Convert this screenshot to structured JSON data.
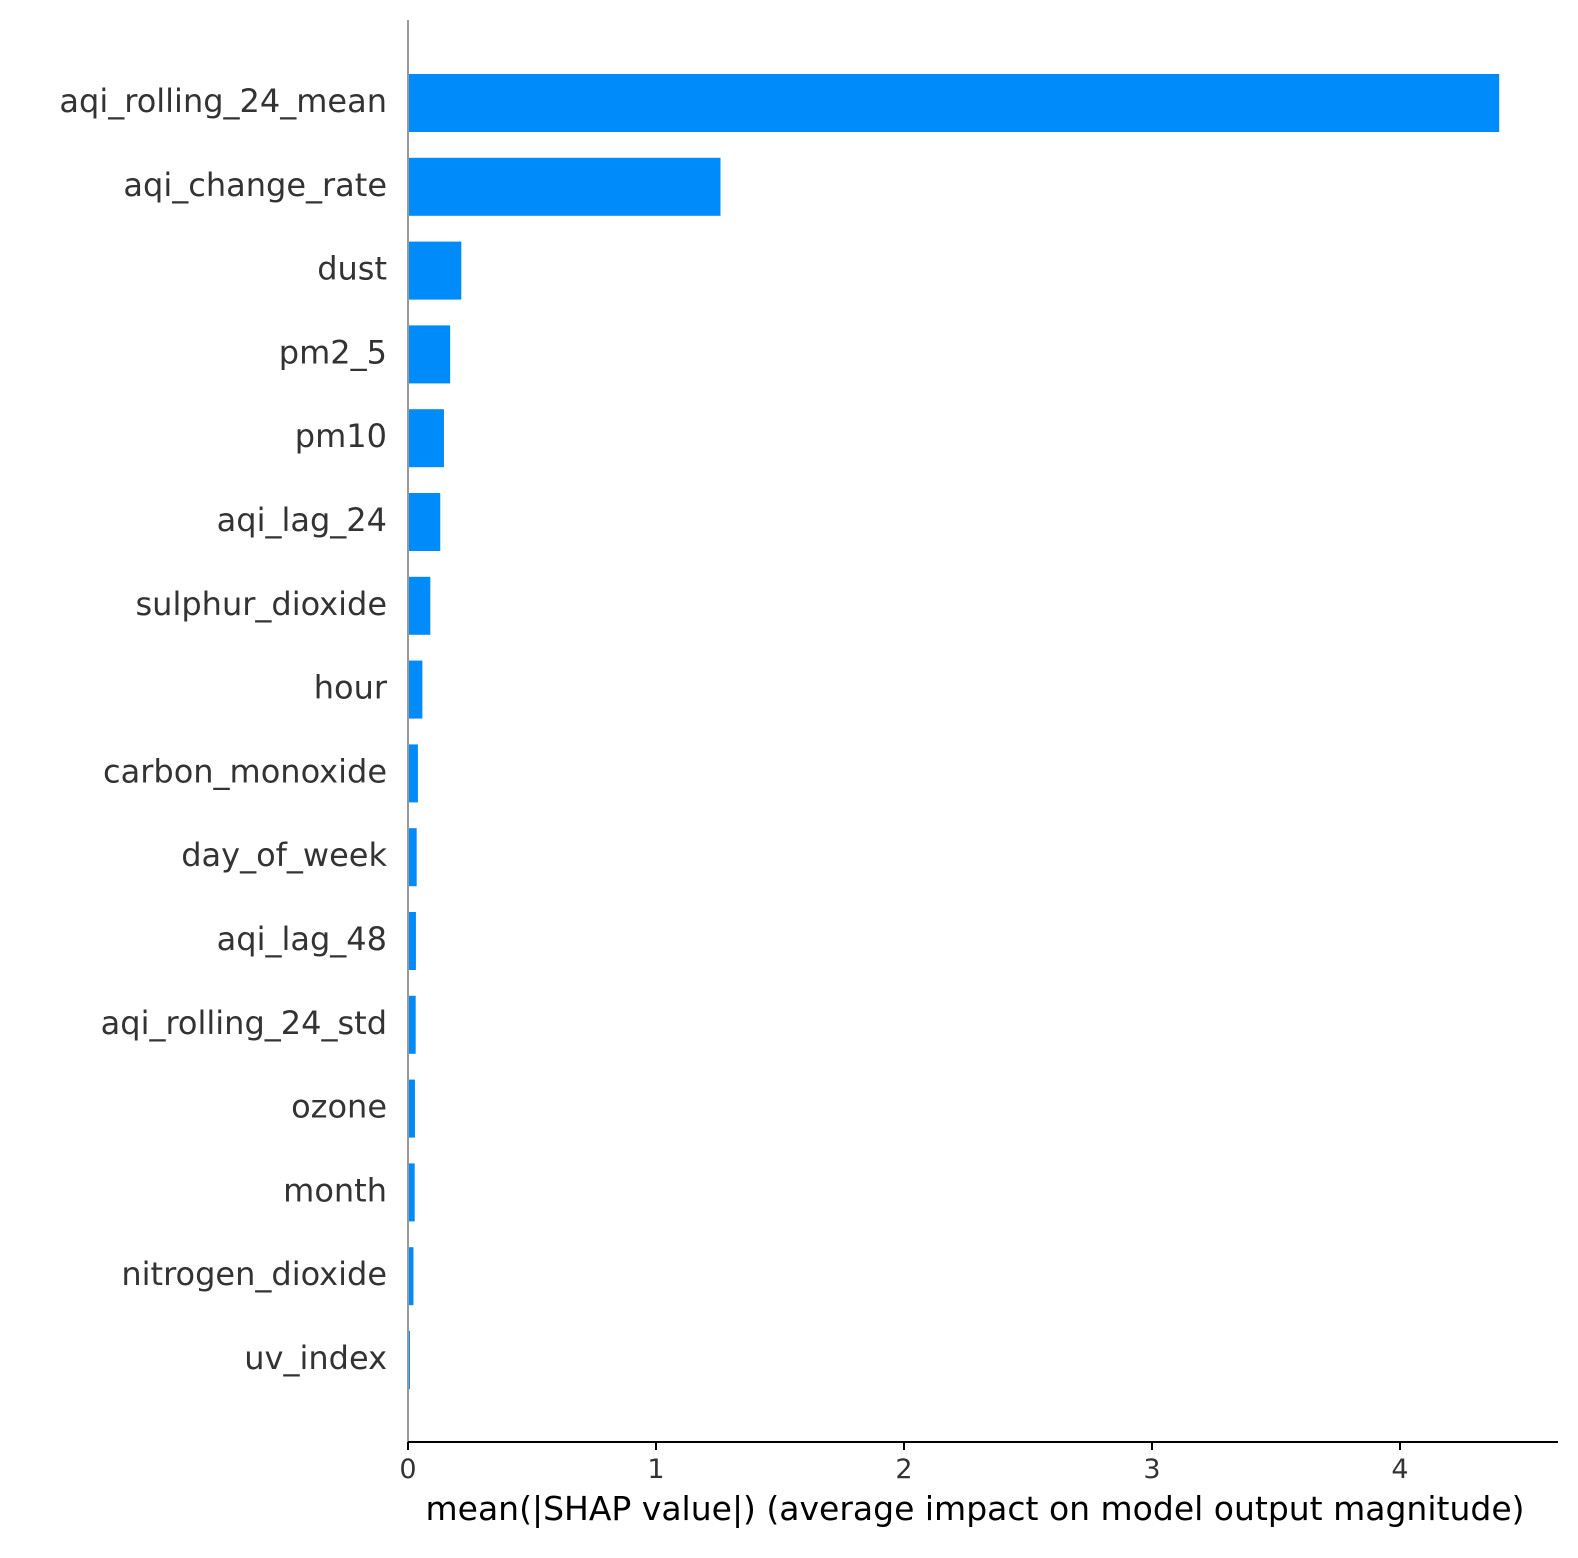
{
  "chart_data": {
    "type": "bar",
    "orientation": "horizontal",
    "title": "",
    "xlabel": "mean(|SHAP value|) (average impact on model output magnitude)",
    "ylabel": "",
    "xlim": [
      0,
      4.6
    ],
    "xticks": [
      "0",
      "1",
      "2",
      "3",
      "4"
    ],
    "grid": false,
    "legend": "none",
    "bar_color": "#008bfb",
    "categories": [
      "aqi_rolling_24_mean",
      "aqi_change_rate",
      "dust",
      "pm2_5",
      "pm10",
      "aqi_lag_24",
      "sulphur_dioxide",
      "hour",
      "carbon_monoxide",
      "day_of_week",
      "aqi_lag_48",
      "aqi_rolling_24_std",
      "ozone",
      "month",
      "nitrogen_dioxide",
      "uv_index"
    ],
    "values": [
      4.4,
      1.26,
      0.215,
      0.17,
      0.145,
      0.13,
      0.09,
      0.058,
      0.04,
      0.035,
      0.032,
      0.031,
      0.028,
      0.027,
      0.022,
      0.008
    ]
  }
}
